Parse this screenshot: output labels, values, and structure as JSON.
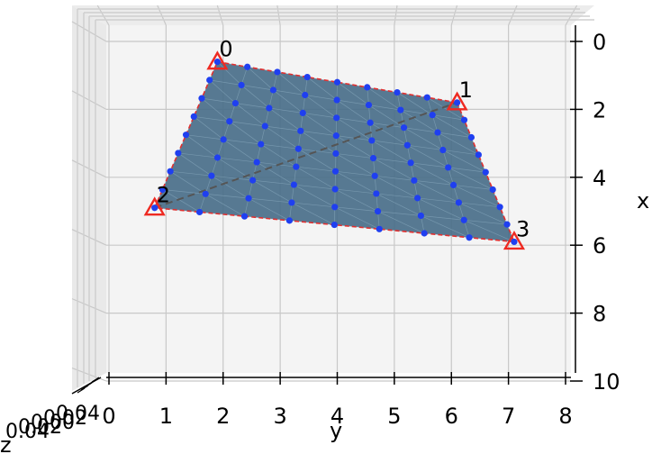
{
  "chart_data": {
    "type": "scatter",
    "view": "3d-top",
    "xlabel": "x",
    "ylabel": "y",
    "zlabel": "z",
    "x_ticks": [
      "0",
      "2",
      "4",
      "6",
      "8",
      "10"
    ],
    "y_ticks": [
      "0",
      "1",
      "2",
      "3",
      "4",
      "5",
      "6",
      "7",
      "8"
    ],
    "z_ticks": [
      "0.04",
      "0.02",
      "0.00",
      "0.02",
      "0.04"
    ],
    "xlim": [
      0,
      10
    ],
    "ylim": [
      0,
      8
    ],
    "grid": true,
    "colors": {
      "surface": "#4a6f8a",
      "points": "#1f3ff0",
      "vertices": "#ee2a22",
      "edges": "#e03030",
      "diagonal": "#555555",
      "pane": "#f4f4f4",
      "grid": "#c8c8c8"
    },
    "vertices": [
      {
        "label": "0",
        "x": 0.6,
        "y": 1.9
      },
      {
        "label": "1",
        "x": 1.8,
        "y": 6.1
      },
      {
        "label": "2",
        "x": 4.9,
        "y": 0.8
      },
      {
        "label": "3",
        "x": 5.9,
        "y": 7.1
      }
    ],
    "grid_points": {
      "rows": 9,
      "cols": 9
    }
  }
}
